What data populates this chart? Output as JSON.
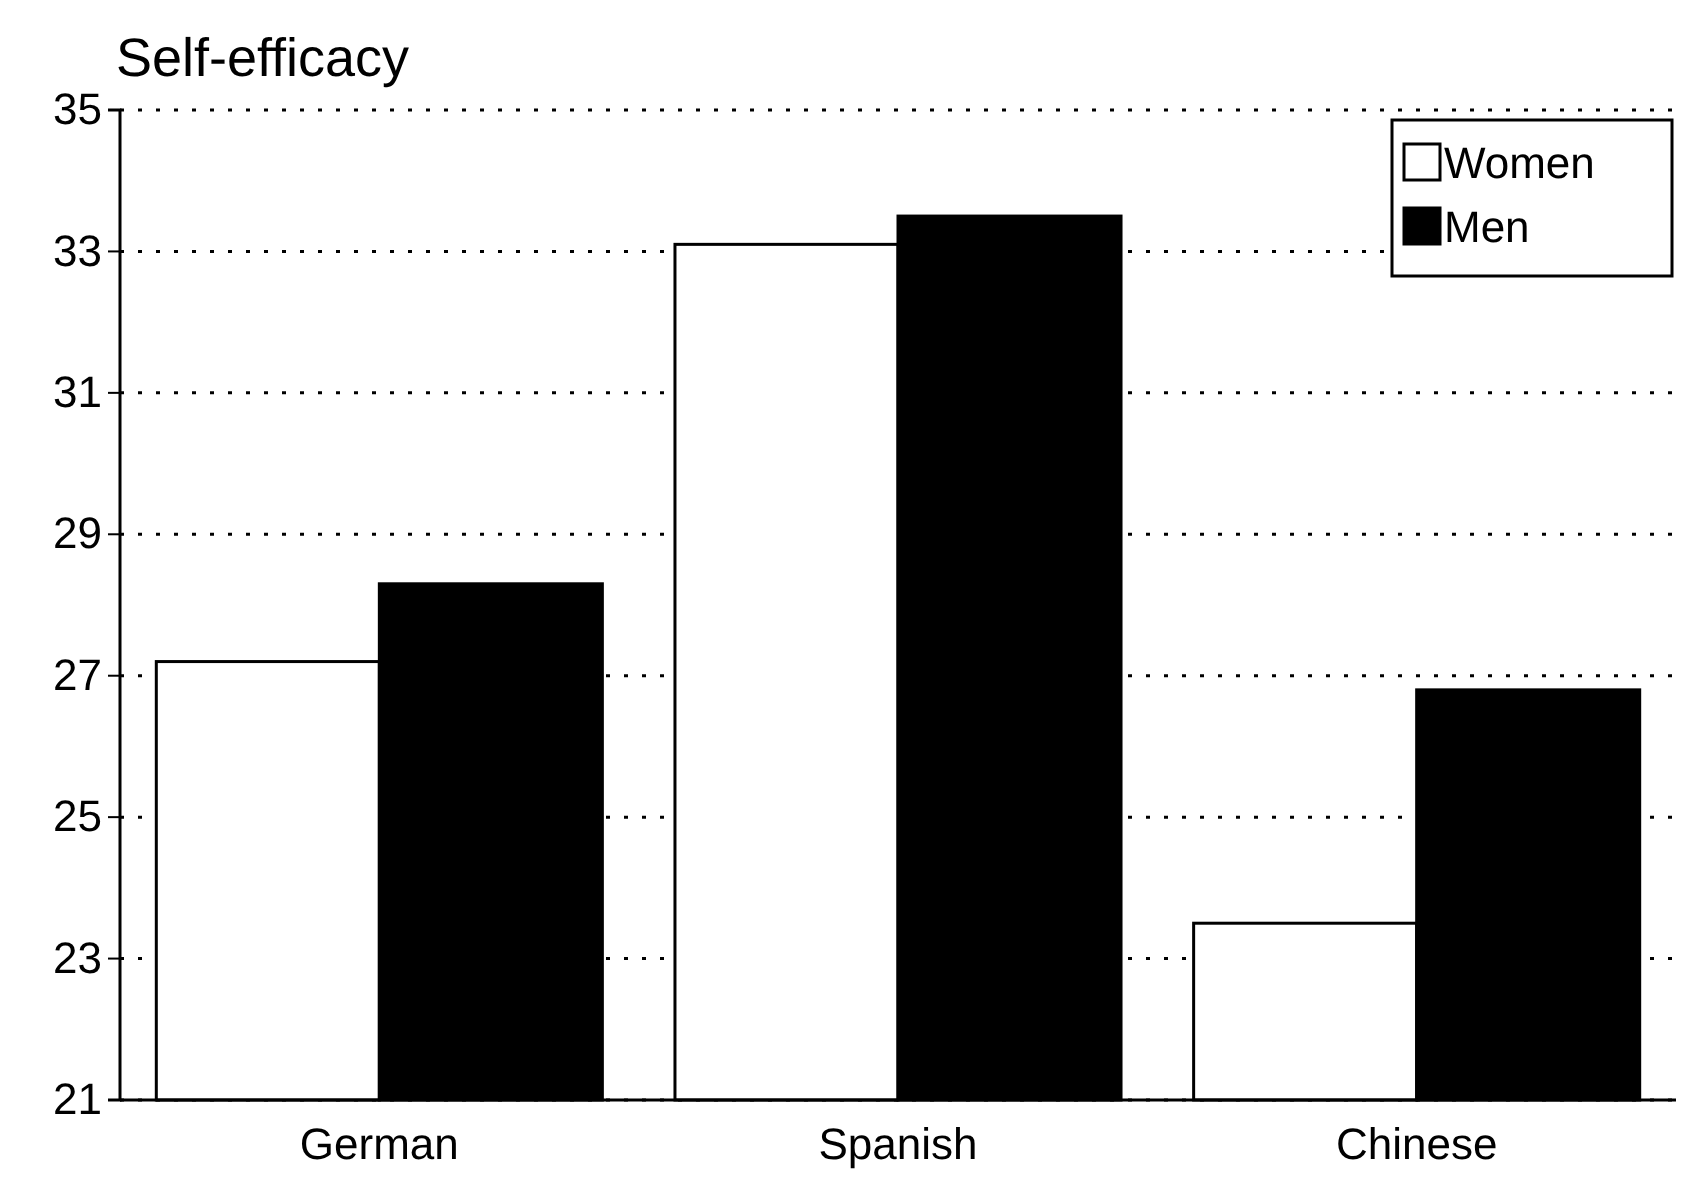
{
  "chart_data": {
    "type": "bar",
    "title": "Self-efficacy",
    "categories": [
      "German",
      "Spanish",
      "Chinese"
    ],
    "series": [
      {
        "name": "Women",
        "color": "#ffffff",
        "values": [
          27.2,
          33.1,
          23.5
        ]
      },
      {
        "name": "Men",
        "color": "#000000",
        "values": [
          28.3,
          33.5,
          26.8
        ]
      }
    ],
    "ylim": [
      21,
      35
    ],
    "yticks": [
      21,
      23,
      25,
      27,
      29,
      31,
      33,
      35
    ],
    "grid": "y",
    "legend": "top right"
  }
}
